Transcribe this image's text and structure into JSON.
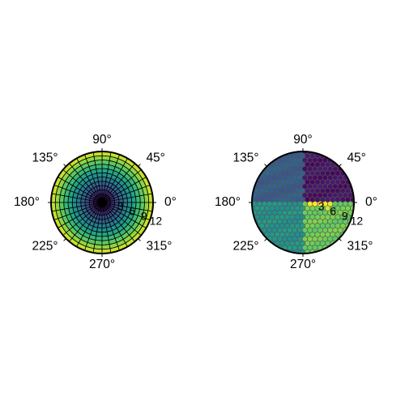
{
  "figure": {
    "theta_tick_labels": [
      "0°",
      "45°",
      "90°",
      "135°",
      "180°",
      "225°",
      "270°",
      "315°"
    ],
    "r_tick_labels": [
      "3",
      "6",
      "9",
      "12"
    ]
  },
  "chart_data": [
    {
      "type": "heatmap",
      "projection": "polar",
      "mesh": "structured",
      "colormap": "viridis",
      "cell_edges": "black",
      "theta_ticks_deg": [
        0,
        45,
        90,
        135,
        180,
        225,
        270,
        315
      ],
      "theta_tick_labels": [
        "0°",
        "45°",
        "90°",
        "135°",
        "180°",
        "225°",
        "270°",
        "315°"
      ],
      "r_ticks": [
        3,
        6,
        9,
        12
      ],
      "r_tick_labels": [
        "3",
        "6",
        "9",
        "12"
      ],
      "rlim": [
        0,
        12
      ],
      "r_edges": [
        0,
        1,
        2,
        3,
        4,
        5,
        6,
        7,
        8,
        9,
        10,
        11,
        12
      ],
      "theta_divisions": 36,
      "radial_ring_values": [
        0.0,
        0.08,
        0.16,
        0.25,
        0.33,
        0.42,
        0.5,
        0.58,
        0.67,
        0.75,
        0.83,
        0.92
      ],
      "value_range": [
        0,
        1
      ],
      "grid": false
    },
    {
      "type": "heatmap",
      "projection": "polar",
      "mesh": "unstructured-hexagonal",
      "colormap": "viridis",
      "cell_edges": "#555555",
      "theta_ticks_deg": [
        0,
        45,
        90,
        135,
        180,
        225,
        270,
        315
      ],
      "theta_tick_labels": [
        "0°",
        "45°",
        "90°",
        "135°",
        "180°",
        "225°",
        "270°",
        "315°"
      ],
      "r_ticks": [
        3,
        6,
        9,
        12
      ],
      "r_tick_labels": [
        "3",
        "6",
        "9",
        "12"
      ],
      "rlim": [
        0,
        12
      ],
      "sectors": [
        {
          "theta_range_deg": [
            0,
            90
          ],
          "value": 0.05
        },
        {
          "theta_range_deg": [
            90,
            180
          ],
          "value": 0.3
        },
        {
          "theta_range_deg": [
            180,
            270
          ],
          "value": 0.52
        },
        {
          "theta_range_deg": [
            270,
            360
          ],
          "value": 0.78
        }
      ],
      "mask": {
        "sector_deg": [
          -15,
          0
        ],
        "r_range": [
          0,
          7
        ],
        "value": 0.98
      },
      "value_range": [
        0,
        1
      ],
      "grid": false
    }
  ]
}
